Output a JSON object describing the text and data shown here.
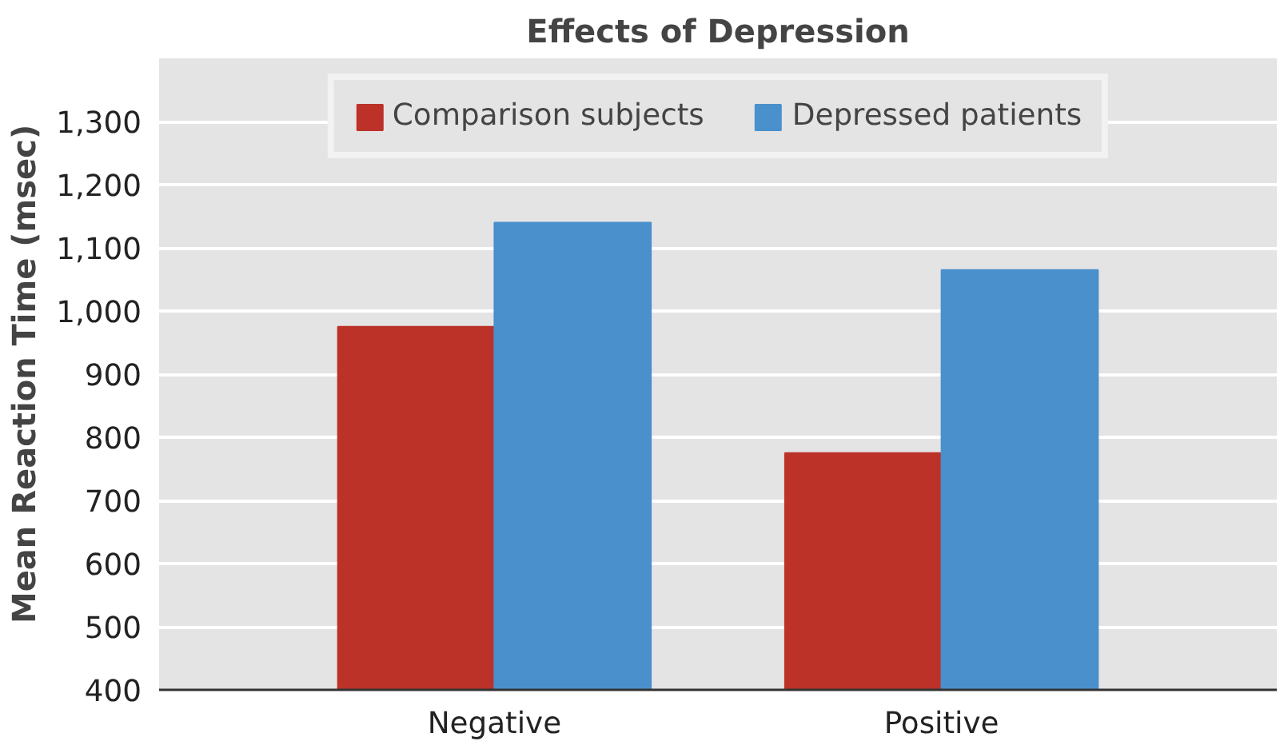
{
  "chart_data": {
    "type": "bar",
    "title": "Effects of Depression",
    "ylabel": "Mean Reaction Time (msec)",
    "categories": [
      "Negative",
      "Positive"
    ],
    "series": [
      {
        "name": "Comparison subjects",
        "color": "#bc3228",
        "values": [
          975,
          775
        ]
      },
      {
        "name": "Depressed patients",
        "color": "#4a90cd",
        "values": [
          1140,
          1065
        ]
      }
    ],
    "ylim": [
      400,
      1400
    ],
    "yticks": [
      {
        "value": 400,
        "label": "400"
      },
      {
        "value": 500,
        "label": "500"
      },
      {
        "value": 600,
        "label": "600"
      },
      {
        "value": 700,
        "label": "700"
      },
      {
        "value": 800,
        "label": "800"
      },
      {
        "value": 900,
        "label": "900"
      },
      {
        "value": 1000,
        "label": "1,000"
      },
      {
        "value": 1100,
        "label": "1,100"
      },
      {
        "value": 1200,
        "label": "1,200"
      },
      {
        "value": 1300,
        "label": "1,300"
      }
    ],
    "grid": "y",
    "legend": "top"
  }
}
